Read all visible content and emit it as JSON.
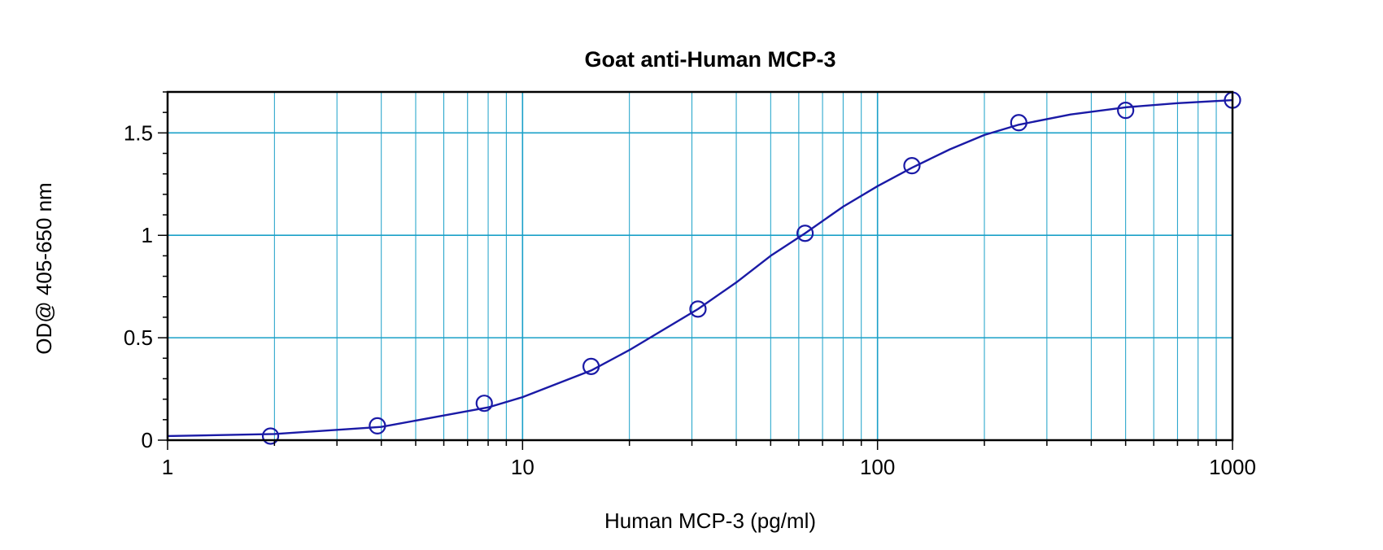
{
  "chart_data": {
    "type": "scatter",
    "title": "Goat anti-Human MCP-3",
    "xlabel": "Human MCP-3 (pg/ml)",
    "ylabel": "OD@ 405-650 nm",
    "x_scale": "log",
    "xlim": [
      1,
      1000
    ],
    "ylim": [
      0,
      1.7
    ],
    "x_ticks": [
      1,
      10,
      100,
      1000
    ],
    "x_tick_labels": [
      "1",
      "10",
      "100",
      "1000"
    ],
    "y_ticks": [
      0,
      0.5,
      1,
      1.5
    ],
    "y_tick_labels": [
      "0",
      "0.5",
      "1",
      "1.5"
    ],
    "grid": true,
    "colors": {
      "series": "#1a1aa6",
      "grid": "#1aa0c8",
      "axis": "#000000"
    },
    "points": {
      "x": [
        1.95,
        3.9,
        7.8,
        15.6,
        31.2,
        62.5,
        125,
        250,
        500,
        1000
      ],
      "y": [
        0.02,
        0.07,
        0.18,
        0.36,
        0.64,
        1.01,
        1.34,
        1.55,
        1.61,
        1.66
      ]
    },
    "fit_curve": {
      "x": [
        1,
        2,
        4,
        8,
        10,
        15.6,
        20,
        31.2,
        40,
        50,
        62.5,
        80,
        100,
        125,
        160,
        200,
        250,
        350,
        500,
        700,
        1000
      ],
      "y": [
        0.02,
        0.03,
        0.065,
        0.16,
        0.21,
        0.34,
        0.44,
        0.64,
        0.77,
        0.9,
        1.01,
        1.14,
        1.24,
        1.33,
        1.42,
        1.49,
        1.54,
        1.59,
        1.625,
        1.645,
        1.66
      ]
    }
  }
}
